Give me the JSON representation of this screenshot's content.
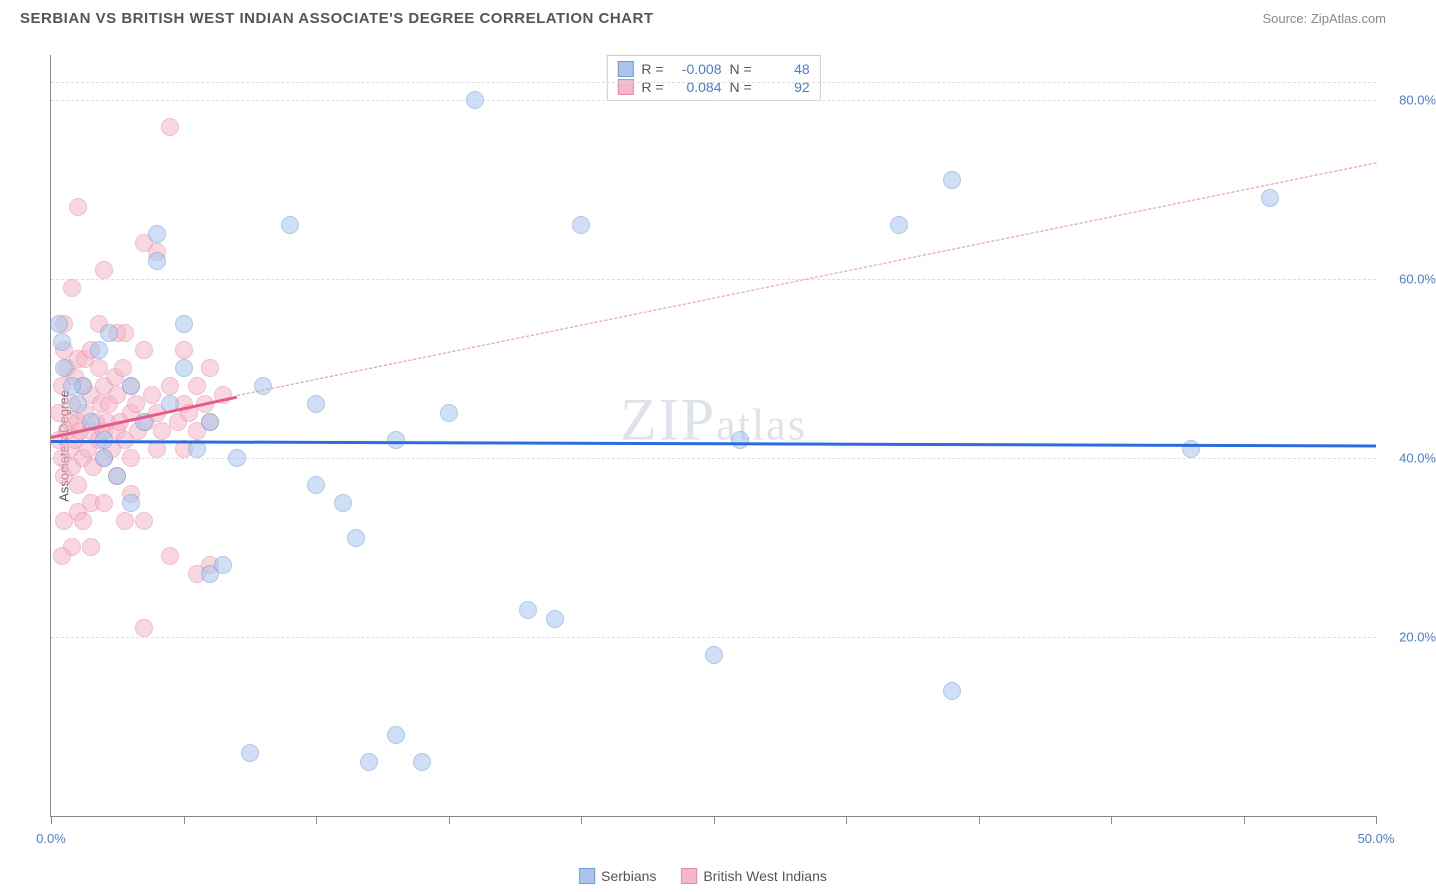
{
  "title": "SERBIAN VS BRITISH WEST INDIAN ASSOCIATE'S DEGREE CORRELATION CHART",
  "source": "Source: ZipAtlas.com",
  "ylabel": "Associate's Degree",
  "watermark_a": "ZIP",
  "watermark_b": "atlas",
  "chart": {
    "type": "scatter",
    "xlim": [
      0,
      50
    ],
    "ylim": [
      0,
      85
    ],
    "xtick_positions": [
      0,
      5,
      10,
      15,
      20,
      25,
      30,
      35,
      40,
      45,
      50
    ],
    "xtick_labels": {
      "0": "0.0%",
      "50": "50.0%"
    },
    "ytick_positions": [
      20,
      40,
      60,
      80
    ],
    "ytick_labels": [
      "20.0%",
      "40.0%",
      "60.0%",
      "80.0%"
    ],
    "grid_color": "#dddddd",
    "background_color": "#ffffff",
    "marker_radius": 9,
    "marker_opacity": 0.55
  },
  "series": [
    {
      "name": "Serbians",
      "color_fill": "#a8c5ed",
      "color_stroke": "#6f9cd9",
      "R": "-0.008",
      "N": "48",
      "trend": {
        "x1": 0,
        "y1": 42.0,
        "x2": 50,
        "y2": 41.5,
        "color": "#2d6cdf",
        "width": 3,
        "dash": false
      },
      "points": [
        [
          0.3,
          55
        ],
        [
          0.4,
          53
        ],
        [
          0.5,
          50
        ],
        [
          1.0,
          46
        ],
        [
          1.2,
          48
        ],
        [
          1.5,
          44
        ],
        [
          2.0,
          42
        ],
        [
          2.0,
          40
        ],
        [
          2.5,
          38
        ],
        [
          3.0,
          35
        ],
        [
          3.0,
          48
        ],
        [
          3.5,
          44
        ],
        [
          4.0,
          65
        ],
        [
          4.0,
          62
        ],
        [
          4.5,
          46
        ],
        [
          5.0,
          55
        ],
        [
          5.0,
          50
        ],
        [
          5.5,
          41
        ],
        [
          6.0,
          44
        ],
        [
          6.0,
          27
        ],
        [
          6.5,
          28
        ],
        [
          7.0,
          40
        ],
        [
          7.5,
          7
        ],
        [
          8.0,
          48
        ],
        [
          9.0,
          66
        ],
        [
          10.0,
          37
        ],
        [
          10.0,
          46
        ],
        [
          11.0,
          35
        ],
        [
          11.5,
          31
        ],
        [
          12.0,
          6
        ],
        [
          13.0,
          9
        ],
        [
          13.0,
          42
        ],
        [
          14.0,
          6
        ],
        [
          15.0,
          45
        ],
        [
          16.0,
          80
        ],
        [
          18.0,
          23
        ],
        [
          19.0,
          22
        ],
        [
          20.0,
          66
        ],
        [
          25.0,
          18
        ],
        [
          26.0,
          42
        ],
        [
          32.0,
          66
        ],
        [
          34.0,
          71
        ],
        [
          34.0,
          14
        ],
        [
          43.0,
          41
        ],
        [
          46.0,
          69
        ],
        [
          1.8,
          52
        ],
        [
          2.2,
          54
        ],
        [
          0.8,
          48
        ]
      ]
    },
    {
      "name": "British West Indians",
      "color_fill": "#f4b8c8",
      "color_stroke": "#e88aa5",
      "R": "0.084",
      "N": "92",
      "trend_solid": {
        "x1": 0,
        "y1": 42.5,
        "x2": 7,
        "y2": 47,
        "color": "#e65a8a",
        "width": 2.5,
        "dash": false
      },
      "trend_dash": {
        "x1": 7,
        "y1": 47,
        "x2": 50,
        "y2": 73,
        "color": "#e88aa5",
        "width": 1.5,
        "dash": true
      },
      "points": [
        [
          0.3,
          42
        ],
        [
          0.3,
          45
        ],
        [
          0.4,
          48
        ],
        [
          0.4,
          40
        ],
        [
          0.5,
          52
        ],
        [
          0.5,
          38
        ],
        [
          0.5,
          55
        ],
        [
          0.6,
          43
        ],
        [
          0.6,
          50
        ],
        [
          0.7,
          41
        ],
        [
          0.7,
          44
        ],
        [
          0.8,
          46
        ],
        [
          0.8,
          39
        ],
        [
          0.8,
          59
        ],
        [
          0.9,
          42
        ],
        [
          0.9,
          49
        ],
        [
          1.0,
          44
        ],
        [
          1.0,
          51
        ],
        [
          1.0,
          37
        ],
        [
          1.0,
          68
        ],
        [
          1.1,
          43
        ],
        [
          1.2,
          40
        ],
        [
          1.2,
          48
        ],
        [
          1.3,
          45
        ],
        [
          1.3,
          51
        ],
        [
          1.4,
          41
        ],
        [
          1.5,
          43
        ],
        [
          1.5,
          47
        ],
        [
          1.5,
          52
        ],
        [
          1.6,
          39
        ],
        [
          1.7,
          44
        ],
        [
          1.8,
          50
        ],
        [
          1.8,
          42
        ],
        [
          1.9,
          46
        ],
        [
          2.0,
          43
        ],
        [
          2.0,
          48
        ],
        [
          2.0,
          40
        ],
        [
          2.0,
          61
        ],
        [
          2.1,
          44
        ],
        [
          2.2,
          46
        ],
        [
          2.3,
          41
        ],
        [
          2.4,
          49
        ],
        [
          2.5,
          43
        ],
        [
          2.5,
          47
        ],
        [
          2.5,
          38
        ],
        [
          2.6,
          44
        ],
        [
          2.7,
          50
        ],
        [
          2.8,
          42
        ],
        [
          2.8,
          54
        ],
        [
          3.0,
          45
        ],
        [
          3.0,
          48
        ],
        [
          3.0,
          40
        ],
        [
          3.0,
          36
        ],
        [
          3.2,
          46
        ],
        [
          3.3,
          43
        ],
        [
          3.5,
          52
        ],
        [
          3.5,
          33
        ],
        [
          3.5,
          64
        ],
        [
          3.6,
          44
        ],
        [
          3.8,
          47
        ],
        [
          4.0,
          41
        ],
        [
          4.0,
          45
        ],
        [
          4.0,
          63
        ],
        [
          4.2,
          43
        ],
        [
          4.5,
          48
        ],
        [
          4.5,
          29
        ],
        [
          4.5,
          77
        ],
        [
          4.8,
          44
        ],
        [
          5.0,
          46
        ],
        [
          5.0,
          41
        ],
        [
          5.0,
          52
        ],
        [
          5.2,
          45
        ],
        [
          5.5,
          43
        ],
        [
          5.5,
          48
        ],
        [
          5.5,
          27
        ],
        [
          5.8,
          46
        ],
        [
          6.0,
          44
        ],
        [
          6.0,
          50
        ],
        [
          6.0,
          28
        ],
        [
          6.5,
          47
        ],
        [
          1.0,
          34
        ],
        [
          1.5,
          35
        ],
        [
          2.0,
          35
        ],
        [
          0.5,
          33
        ],
        [
          1.2,
          33
        ],
        [
          2.8,
          33
        ],
        [
          0.8,
          30
        ],
        [
          1.5,
          30
        ],
        [
          0.4,
          29
        ],
        [
          3.5,
          21
        ],
        [
          1.8,
          55
        ],
        [
          2.5,
          54
        ]
      ]
    }
  ],
  "bottom_legend": {
    "a": "Serbians",
    "b": "British West Indians"
  },
  "stats_labels": {
    "R": "R =",
    "N": "N ="
  }
}
